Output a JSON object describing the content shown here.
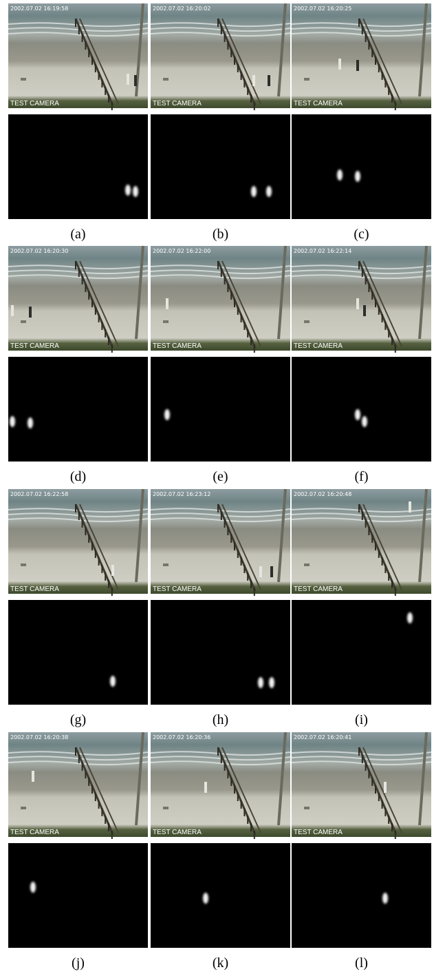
{
  "panels": [
    {
      "timestamp": "2002.07.02 16:19:58",
      "camera": "TEST CAMERA",
      "caption": "(a)"
    },
    {
      "timestamp": "2002.07.02 16:20:02",
      "camera": "TEST CAMERA",
      "caption": "(b)"
    },
    {
      "timestamp": "2002.07.02 16:20:25",
      "camera": "TEST CAMERA",
      "caption": "(c)"
    },
    {
      "timestamp": "2002.07.02 16:20:30",
      "camera": "TEST CAMERA",
      "caption": "(d)"
    },
    {
      "timestamp": "2002.07.02 16:22:00",
      "camera": "TEST CAMERA",
      "caption": "(e)"
    },
    {
      "timestamp": "2002.07.02 16:22:14",
      "camera": "TEST CAMERA",
      "caption": "(f)"
    },
    {
      "timestamp": "2002.07.02 16:22:58",
      "camera": "TEST CAMERA",
      "caption": "(g)"
    },
    {
      "timestamp": "2002.07.02 16:23:12",
      "camera": "TEST CAMERA",
      "caption": "(h)"
    },
    {
      "timestamp": "2002.07.02 16:20:48",
      "camera": "TEST CAMERA",
      "caption": "(i)"
    },
    {
      "timestamp": "2002.07.02 16:20:38",
      "camera": "TEST CAMERA",
      "caption": "(j)"
    },
    {
      "timestamp": "2002.07.02 16:20:36",
      "camera": "TEST CAMERA",
      "caption": "(k)"
    },
    {
      "timestamp": "2002.07.02 16:20:41",
      "camera": "TEST CAMERA",
      "caption": "(l)"
    }
  ]
}
